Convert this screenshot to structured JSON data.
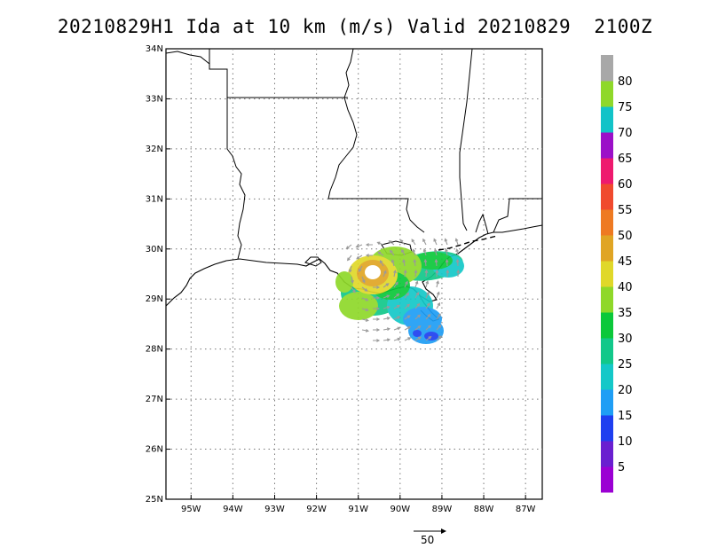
{
  "title": "20210829H1 Ida at 10 km (m/s) Valid 20210829  2100Z",
  "map": {
    "lon_labels": [
      "95W",
      "94W",
      "93W",
      "92W",
      "91W",
      "90W",
      "89W",
      "88W",
      "87W"
    ],
    "lon_values": [
      -95,
      -94,
      -93,
      -92,
      -91,
      -90,
      -89,
      -88,
      -87
    ],
    "lat_labels": [
      "34N",
      "33N",
      "32N",
      "31N",
      "30N",
      "29N",
      "28N",
      "27N",
      "26N",
      "25N"
    ],
    "lat_values": [
      34,
      33,
      32,
      31,
      30,
      29,
      28,
      27,
      26,
      25
    ],
    "lon_range": [
      -95.6,
      -86.6
    ],
    "lat_range": [
      25,
      34
    ],
    "grid": "dotted"
  },
  "colorbar": {
    "labels": [
      "5",
      "10",
      "15",
      "20",
      "25",
      "30",
      "35",
      "40",
      "45",
      "50",
      "55",
      "60",
      "65",
      "70",
      "75",
      "80"
    ],
    "colors": [
      "#9b00d3",
      "#6a1fd0",
      "#1f3ff0",
      "#1f9ef5",
      "#14c8c8",
      "#12c88a",
      "#0bc83a",
      "#8fd82a",
      "#e0d82a",
      "#e0a524",
      "#ee7a22",
      "#f04a2e",
      "#ee1a6e",
      "#9b10c8",
      "#12c3c8",
      "#8fd82a",
      "#a8a8a8"
    ]
  },
  "reference_vector": {
    "label": "50"
  }
}
